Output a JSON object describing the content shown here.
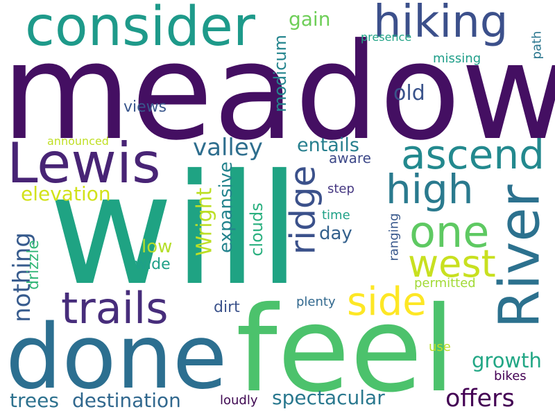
{
  "word_cloud": {
    "words": [
      {
        "text": "meadow",
        "color": "#440f62"
      },
      {
        "text": "will",
        "color": "#1fa383"
      },
      {
        "text": "done",
        "color": "#2c6f90"
      },
      {
        "text": "feel",
        "color": "#4cc26c"
      },
      {
        "text": "Lewis",
        "color": "#482475"
      },
      {
        "text": "consider",
        "color": "#1e9a8a"
      },
      {
        "text": "hiking",
        "color": "#3c508b"
      },
      {
        "text": "River",
        "color": "#2c718e"
      },
      {
        "text": "ascend",
        "color": "#23898e"
      },
      {
        "text": "high",
        "color": "#2a7a8e"
      },
      {
        "text": "trails",
        "color": "#472d7b"
      },
      {
        "text": "one",
        "color": "#5ec962"
      },
      {
        "text": "west",
        "color": "#c8e020"
      },
      {
        "text": "side",
        "color": "#fde725"
      },
      {
        "text": "ridge",
        "color": "#3b518b"
      },
      {
        "text": "Wright",
        "color": "#bddf26"
      },
      {
        "text": "valley",
        "color": "#2e6e8e"
      },
      {
        "text": "entails",
        "color": "#277f8e"
      },
      {
        "text": "offers",
        "color": "#440154"
      },
      {
        "text": "growth",
        "color": "#22a785"
      },
      {
        "text": "spectacular",
        "color": "#29788e"
      },
      {
        "text": "destination",
        "color": "#31688e"
      },
      {
        "text": "trees",
        "color": "#2d718e"
      },
      {
        "text": "nothing",
        "color": "#375b8d"
      },
      {
        "text": "elevation",
        "color": "#d2e21b"
      },
      {
        "text": "expansive",
        "color": "#25848e"
      },
      {
        "text": "clouds",
        "color": "#2ab07f"
      },
      {
        "text": "modicum",
        "color": "#25858e"
      },
      {
        "text": "old",
        "color": "#3a538b"
      },
      {
        "text": "gain",
        "color": "#6ece58"
      },
      {
        "text": "views",
        "color": "#39568c"
      },
      {
        "text": "day",
        "color": "#34618d"
      },
      {
        "text": "low",
        "color": "#b5de2b"
      },
      {
        "text": "wide",
        "color": "#1fa088"
      },
      {
        "text": "drizzle",
        "color": "#35b779"
      },
      {
        "text": "aware",
        "color": "#3e4989"
      },
      {
        "text": "dirt",
        "color": "#3b528b"
      },
      {
        "text": "plenty",
        "color": "#31688e"
      },
      {
        "text": "permitted",
        "color": "#a2da37"
      },
      {
        "text": "step",
        "color": "#453781"
      },
      {
        "text": "time",
        "color": "#1fa187"
      },
      {
        "text": "ranging",
        "color": "#38588c"
      },
      {
        "text": "use",
        "color": "#bddf26"
      },
      {
        "text": "bikes",
        "color": "#440154"
      },
      {
        "text": "loudly",
        "color": "#3e0751"
      },
      {
        "text": "announced",
        "color": "#c0df25"
      },
      {
        "text": "presence",
        "color": "#20a386"
      },
      {
        "text": "missing",
        "color": "#1f9e89"
      },
      {
        "text": "path",
        "color": "#2a768e"
      }
    ]
  }
}
